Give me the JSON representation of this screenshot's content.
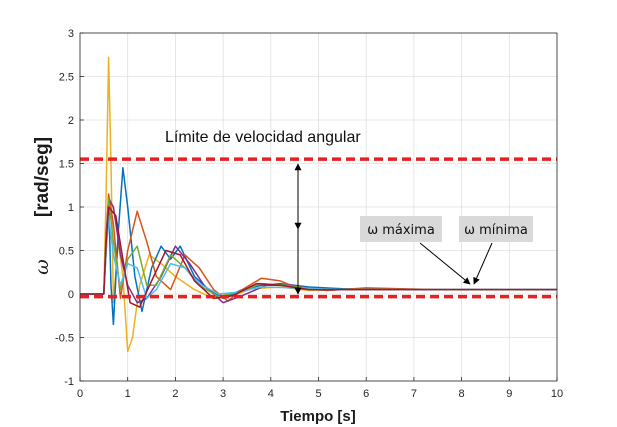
{
  "chart_data": {
    "type": "line",
    "title": "",
    "xlabel": "Tiempo [s]",
    "ylabel_symbol": "ω",
    "ylabel_unit": "[rad/seg]",
    "xlim": [
      0,
      10
    ],
    "ylim": [
      -1,
      3
    ],
    "xticks": [
      "0",
      "1",
      "2",
      "3",
      "4",
      "5",
      "6",
      "7",
      "8",
      "9",
      "10"
    ],
    "yticks": [
      "-1",
      "-0.5",
      "0",
      "0.5",
      "1",
      "1.5",
      "2",
      "2.5",
      "3"
    ],
    "grid": true,
    "limits": [
      {
        "y": 1.55,
        "color": "#e8201e"
      },
      {
        "y": -0.03,
        "color": "#e8201e"
      }
    ],
    "annotations": {
      "limit_label": "Límite de velocidad angular",
      "max_label": "ω máxima",
      "min_label": "ω mínima"
    },
    "series": [
      {
        "color": "#edb120",
        "points": [
          [
            0,
            0
          ],
          [
            0.5,
            0
          ],
          [
            0.55,
            1.2
          ],
          [
            0.6,
            2.72
          ],
          [
            0.65,
            1.5
          ],
          [
            0.7,
            -0.1
          ],
          [
            0.8,
            0.6
          ],
          [
            0.9,
            0.2
          ],
          [
            1.0,
            -0.66
          ],
          [
            1.1,
            -0.5
          ],
          [
            1.25,
            0.1
          ],
          [
            1.45,
            0.45
          ],
          [
            1.7,
            0.35
          ],
          [
            2.0,
            0.2
          ],
          [
            2.4,
            0.05
          ],
          [
            2.8,
            -0.05
          ],
          [
            3.2,
            -0.02
          ],
          [
            3.6,
            0.06
          ],
          [
            4.2,
            0.08
          ],
          [
            4.8,
            0.04
          ],
          [
            5.5,
            0.06
          ],
          [
            7,
            0.05
          ],
          [
            8.5,
            0.05
          ],
          [
            10,
            0.05
          ]
        ]
      },
      {
        "color": "#0072bd",
        "points": [
          [
            0,
            0
          ],
          [
            0.5,
            0
          ],
          [
            0.55,
            0.5
          ],
          [
            0.6,
            1.1
          ],
          [
            0.65,
            0.1
          ],
          [
            0.7,
            -0.35
          ],
          [
            0.8,
            0.7
          ],
          [
            0.9,
            1.45
          ],
          [
            1.0,
            1.0
          ],
          [
            1.15,
            0.2
          ],
          [
            1.3,
            -0.2
          ],
          [
            1.5,
            0.3
          ],
          [
            1.7,
            0.55
          ],
          [
            1.9,
            0.4
          ],
          [
            2.1,
            0.55
          ],
          [
            2.4,
            0.2
          ],
          [
            2.7,
            0.05
          ],
          [
            3.0,
            -0.05
          ],
          [
            3.4,
            0.05
          ],
          [
            3.8,
            0.1
          ],
          [
            4.2,
            0.12
          ],
          [
            4.8,
            0.08
          ],
          [
            5.5,
            0.06
          ],
          [
            7,
            0.05
          ],
          [
            10,
            0.05
          ]
        ]
      },
      {
        "color": "#d95319",
        "points": [
          [
            0,
            0
          ],
          [
            0.5,
            0
          ],
          [
            0.55,
            0.6
          ],
          [
            0.6,
            1.15
          ],
          [
            0.7,
            0.8
          ],
          [
            0.85,
            -0.05
          ],
          [
            1.0,
            0.5
          ],
          [
            1.2,
            0.95
          ],
          [
            1.4,
            0.6
          ],
          [
            1.6,
            0.2
          ],
          [
            1.9,
            0.05
          ],
          [
            2.2,
            0.45
          ],
          [
            2.5,
            0.3
          ],
          [
            2.8,
            0.05
          ],
          [
            3.1,
            -0.08
          ],
          [
            3.4,
            0.05
          ],
          [
            3.8,
            0.18
          ],
          [
            4.2,
            0.15
          ],
          [
            4.6,
            0.06
          ],
          [
            5.2,
            0.04
          ],
          [
            6,
            0.07
          ],
          [
            7.5,
            0.05
          ],
          [
            10,
            0.05
          ]
        ]
      },
      {
        "color": "#7e2f8e",
        "points": [
          [
            0,
            0
          ],
          [
            0.5,
            0
          ],
          [
            0.55,
            0.7
          ],
          [
            0.6,
            1.1
          ],
          [
            0.7,
            1.0
          ],
          [
            0.85,
            0.45
          ],
          [
            1.0,
            0.1
          ],
          [
            1.2,
            -0.1
          ],
          [
            1.4,
            -0.05
          ],
          [
            1.7,
            0.2
          ],
          [
            2.0,
            0.55
          ],
          [
            2.3,
            0.35
          ],
          [
            2.6,
            0.1
          ],
          [
            3.0,
            -0.1
          ],
          [
            3.4,
            -0.02
          ],
          [
            3.9,
            0.1
          ],
          [
            4.4,
            0.1
          ],
          [
            5.0,
            0.05
          ],
          [
            6,
            0.05
          ],
          [
            10,
            0.05
          ]
        ]
      },
      {
        "color": "#77ac30",
        "points": [
          [
            0,
            0
          ],
          [
            0.5,
            0
          ],
          [
            0.55,
            0.6
          ],
          [
            0.6,
            1.1
          ],
          [
            0.7,
            0.6
          ],
          [
            0.85,
            0.05
          ],
          [
            1.0,
            0.4
          ],
          [
            1.2,
            0.55
          ],
          [
            1.4,
            0.1
          ],
          [
            1.6,
            0.1
          ],
          [
            1.9,
            0.45
          ],
          [
            2.2,
            0.3
          ],
          [
            2.5,
            0.1
          ],
          [
            2.9,
            -0.03
          ],
          [
            3.3,
            0.02
          ],
          [
            3.8,
            0.12
          ],
          [
            4.3,
            0.1
          ],
          [
            5.0,
            0.05
          ],
          [
            6,
            0.05
          ],
          [
            10,
            0.05
          ]
        ]
      },
      {
        "color": "#4dbeee",
        "points": [
          [
            0,
            0
          ],
          [
            0.5,
            0
          ],
          [
            0.55,
            0.5
          ],
          [
            0.6,
            0.9
          ],
          [
            0.7,
            0.45
          ],
          [
            0.85,
            0.1
          ],
          [
            1.0,
            0.35
          ],
          [
            1.2,
            0.3
          ],
          [
            1.4,
            -0.05
          ],
          [
            1.6,
            0.05
          ],
          [
            1.9,
            0.35
          ],
          [
            2.2,
            0.3
          ],
          [
            2.5,
            0.12
          ],
          [
            2.9,
            0.0
          ],
          [
            3.3,
            0.02
          ],
          [
            3.8,
            0.08
          ],
          [
            4.5,
            0.07
          ],
          [
            5.5,
            0.05
          ],
          [
            10,
            0.05
          ]
        ]
      },
      {
        "color": "#a2142f",
        "points": [
          [
            0,
            0
          ],
          [
            0.5,
            0
          ],
          [
            0.55,
            0.6
          ],
          [
            0.6,
            1.0
          ],
          [
            0.75,
            0.9
          ],
          [
            0.9,
            0.4
          ],
          [
            1.05,
            -0.1
          ],
          [
            1.25,
            -0.15
          ],
          [
            1.5,
            0.15
          ],
          [
            1.8,
            0.5
          ],
          [
            2.1,
            0.45
          ],
          [
            2.4,
            0.15
          ],
          [
            2.8,
            -0.05
          ],
          [
            3.2,
            -0.02
          ],
          [
            3.7,
            0.12
          ],
          [
            4.2,
            0.1
          ],
          [
            4.8,
            0.05
          ],
          [
            6,
            0.05
          ],
          [
            10,
            0.05
          ]
        ]
      }
    ]
  }
}
